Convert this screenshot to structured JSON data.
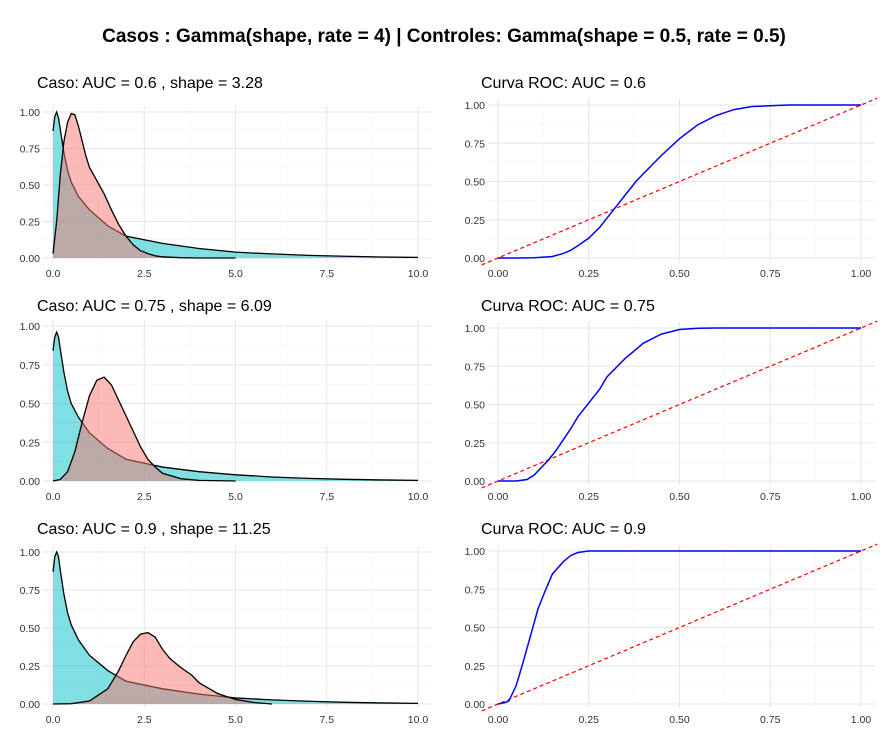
{
  "main_title": "Casos : Gamma(shape, rate = 4) | Controles: Gamma(shape = 0.5, rate = 0.5)",
  "colors": {
    "controls_fill": "#00BFC4",
    "cases_fill": "#F8766D",
    "roc_line": "#0000FF",
    "diagonal": "#FF0000",
    "outline": "#000000"
  },
  "chart_data": [
    {
      "type": "area",
      "title": "Caso: AUC =  0.6 , shape =  3.28",
      "xlim": [
        0,
        10
      ],
      "ylim": [
        0,
        1
      ],
      "x_ticks": [
        "0.0",
        "2.5",
        "5.0",
        "7.5",
        "10.0"
      ],
      "y_ticks": [
        "0.00",
        "0.25",
        "0.50",
        "0.75",
        "1.00"
      ],
      "series": [
        {
          "x": [
            0,
            0.05,
            0.1,
            0.15,
            0.2,
            0.3,
            0.4,
            0.5,
            0.7,
            1.0,
            1.5,
            2.0,
            3.0,
            4.0,
            5.0,
            6.0,
            7.0,
            8.0,
            9.0,
            10.0
          ],
          "y": [
            0.87,
            0.97,
            1.0,
            0.96,
            0.88,
            0.72,
            0.6,
            0.52,
            0.42,
            0.33,
            0.22,
            0.15,
            0.1,
            0.065,
            0.04,
            0.028,
            0.018,
            0.012,
            0.007,
            0.004
          ]
        },
        {
          "x": [
            0,
            0.1,
            0.2,
            0.3,
            0.4,
            0.5,
            0.6,
            0.7,
            0.8,
            0.9,
            1.0,
            1.2,
            1.4,
            1.6,
            1.8,
            2.0,
            2.2,
            2.4,
            2.6,
            2.8,
            3.0,
            3.5,
            4.0,
            5.0
          ],
          "y": [
            0.03,
            0.25,
            0.57,
            0.8,
            0.93,
            0.99,
            0.98,
            0.9,
            0.8,
            0.7,
            0.62,
            0.53,
            0.44,
            0.33,
            0.23,
            0.15,
            0.09,
            0.05,
            0.03,
            0.015,
            0.008,
            0.002,
            0,
            0
          ]
        }
      ]
    },
    {
      "type": "line",
      "title": "Curva ROC: AUC =  0.6",
      "xlim": [
        0,
        1
      ],
      "ylim": [
        0,
        1
      ],
      "x_ticks": [
        "0.00",
        "0.25",
        "0.50",
        "0.75",
        "1.00"
      ],
      "y_ticks": [
        "0.00",
        "0.25",
        "0.50",
        "0.75",
        "1.00"
      ],
      "series": [
        {
          "x": [
            0,
            0.05,
            0.1,
            0.15,
            0.18,
            0.2,
            0.22,
            0.25,
            0.28,
            0.3,
            0.33,
            0.35,
            0.38,
            0.4,
            0.45,
            0.5,
            0.55,
            0.6,
            0.65,
            0.7,
            0.75,
            0.8,
            1.0
          ],
          "y": [
            0,
            0,
            0.002,
            0.01,
            0.03,
            0.05,
            0.08,
            0.13,
            0.2,
            0.26,
            0.35,
            0.41,
            0.5,
            0.55,
            0.67,
            0.78,
            0.87,
            0.93,
            0.97,
            0.99,
            0.995,
            1.0,
            1.0
          ]
        }
      ],
      "reference_line": {
        "x": [
          0,
          1
        ],
        "y": [
          0,
          1
        ]
      }
    },
    {
      "type": "area",
      "title": "Caso: AUC =  0.75 , shape =  6.09",
      "xlim": [
        0,
        10
      ],
      "ylim": [
        0,
        1
      ],
      "x_ticks": [
        "0.0",
        "2.5",
        "5.0",
        "7.5",
        "10.0"
      ],
      "y_ticks": [
        "0.00",
        "0.25",
        "0.50",
        "0.75",
        "1.00"
      ],
      "series": [
        {
          "x": [
            0,
            0.05,
            0.1,
            0.15,
            0.2,
            0.3,
            0.4,
            0.5,
            0.7,
            1.0,
            1.5,
            2.0,
            3.0,
            4.0,
            5.0,
            6.0,
            7.0,
            8.0,
            9.0,
            10.0
          ],
          "y": [
            0.84,
            0.93,
            0.96,
            0.93,
            0.85,
            0.7,
            0.58,
            0.5,
            0.41,
            0.31,
            0.21,
            0.14,
            0.09,
            0.06,
            0.04,
            0.026,
            0.017,
            0.011,
            0.007,
            0.004
          ]
        },
        {
          "x": [
            0,
            0.2,
            0.4,
            0.6,
            0.8,
            1.0,
            1.2,
            1.4,
            1.6,
            1.8,
            2.0,
            2.2,
            2.4,
            2.6,
            2.8,
            3.0,
            3.5,
            4.0,
            5.0
          ],
          "y": [
            0,
            0.01,
            0.06,
            0.19,
            0.38,
            0.55,
            0.65,
            0.67,
            0.62,
            0.52,
            0.42,
            0.32,
            0.22,
            0.14,
            0.09,
            0.05,
            0.015,
            0.004,
            0
          ]
        }
      ]
    },
    {
      "type": "line",
      "title": "Curva ROC: AUC =  0.75",
      "xlim": [
        0,
        1
      ],
      "ylim": [
        0,
        1
      ],
      "x_ticks": [
        "0.00",
        "0.25",
        "0.50",
        "0.75",
        "1.00"
      ],
      "y_ticks": [
        "0.00",
        "0.25",
        "0.50",
        "0.75",
        "1.00"
      ],
      "series": [
        {
          "x": [
            0,
            0.05,
            0.08,
            0.1,
            0.12,
            0.14,
            0.16,
            0.18,
            0.2,
            0.22,
            0.25,
            0.28,
            0.3,
            0.35,
            0.4,
            0.45,
            0.5,
            0.55,
            0.6,
            1.0
          ],
          "y": [
            0,
            0,
            0.01,
            0.04,
            0.09,
            0.14,
            0.2,
            0.27,
            0.34,
            0.42,
            0.51,
            0.6,
            0.68,
            0.8,
            0.9,
            0.96,
            0.99,
            0.998,
            1.0,
            1.0
          ]
        }
      ],
      "reference_line": {
        "x": [
          0,
          1
        ],
        "y": [
          0,
          1
        ]
      }
    },
    {
      "type": "area",
      "title": "Caso: AUC =  0.9 , shape =  11.25",
      "xlim": [
        0,
        10
      ],
      "ylim": [
        0,
        1
      ],
      "x_ticks": [
        "0.0",
        "2.5",
        "5.0",
        "7.5",
        "10.0"
      ],
      "y_ticks": [
        "0.00",
        "0.25",
        "0.50",
        "0.75",
        "1.00"
      ],
      "series": [
        {
          "x": [
            0,
            0.05,
            0.1,
            0.15,
            0.2,
            0.3,
            0.4,
            0.5,
            0.7,
            1.0,
            1.5,
            2.0,
            3.0,
            4.0,
            5.0,
            6.0,
            7.0,
            8.0,
            9.0,
            10.0
          ],
          "y": [
            0.87,
            0.97,
            1.0,
            0.97,
            0.88,
            0.72,
            0.6,
            0.52,
            0.42,
            0.32,
            0.22,
            0.15,
            0.1,
            0.065,
            0.04,
            0.027,
            0.018,
            0.011,
            0.007,
            0.004
          ]
        },
        {
          "x": [
            0,
            0.5,
            1.0,
            1.5,
            1.8,
            2.0,
            2.2,
            2.4,
            2.6,
            2.8,
            3.0,
            3.2,
            3.5,
            3.8,
            4.0,
            4.5,
            5.0,
            5.5,
            6.0
          ],
          "y": [
            0,
            0.002,
            0.02,
            0.1,
            0.22,
            0.32,
            0.41,
            0.46,
            0.47,
            0.44,
            0.36,
            0.3,
            0.24,
            0.19,
            0.14,
            0.07,
            0.03,
            0.01,
            0
          ]
        }
      ]
    },
    {
      "type": "line",
      "title": "Curva ROC: AUC =  0.9",
      "xlim": [
        0,
        1
      ],
      "ylim": [
        0,
        1
      ],
      "x_ticks": [
        "0.00",
        "0.25",
        "0.50",
        "0.75",
        "1.00"
      ],
      "y_ticks": [
        "0.00",
        "0.25",
        "0.50",
        "0.75",
        "1.00"
      ],
      "series": [
        {
          "x": [
            0,
            0.01,
            0.02,
            0.03,
            0.05,
            0.07,
            0.09,
            0.11,
            0.13,
            0.15,
            0.18,
            0.2,
            0.22,
            0.25,
            1.0
          ],
          "y": [
            0,
            0.005,
            0.01,
            0.02,
            0.12,
            0.28,
            0.45,
            0.62,
            0.74,
            0.85,
            0.93,
            0.97,
            0.99,
            1.0,
            1.0
          ]
        }
      ],
      "reference_line": {
        "x": [
          0,
          1
        ],
        "y": [
          0,
          1
        ]
      }
    }
  ]
}
